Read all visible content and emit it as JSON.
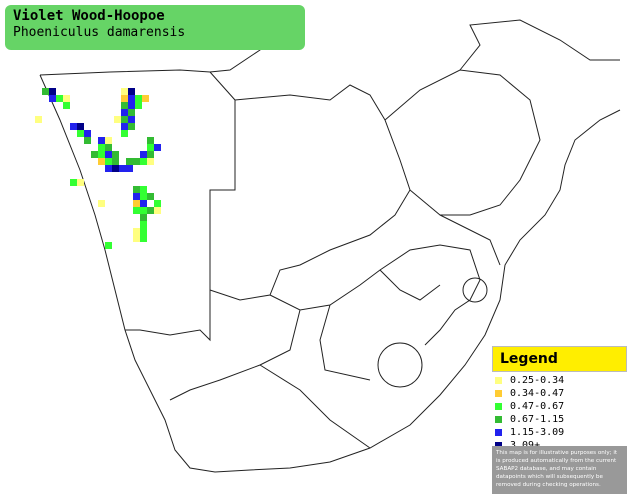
{
  "header": {
    "title": "Violet Wood-Hoopoe",
    "subtitle": "Phoeniculus damarensis"
  },
  "legend": {
    "title": "Legend",
    "items": [
      {
        "label": "0.25-0.34",
        "color": "#ffff80"
      },
      {
        "label": "0.34-0.47",
        "color": "#ffcc33"
      },
      {
        "label": "0.47-0.67",
        "color": "#33ff33"
      },
      {
        "label": "0.67-1.15",
        "color": "#33bb33"
      },
      {
        "label": "1.15-3.09",
        "color": "#2222ee"
      },
      {
        "label": "3.09+",
        "color": "#000088"
      }
    ],
    "note": "This map is for illustrative purposes only; it is produced automatically from the current SABAP2 database, and may contain datapoints which will subsequently be removed during checking operations."
  }
}
